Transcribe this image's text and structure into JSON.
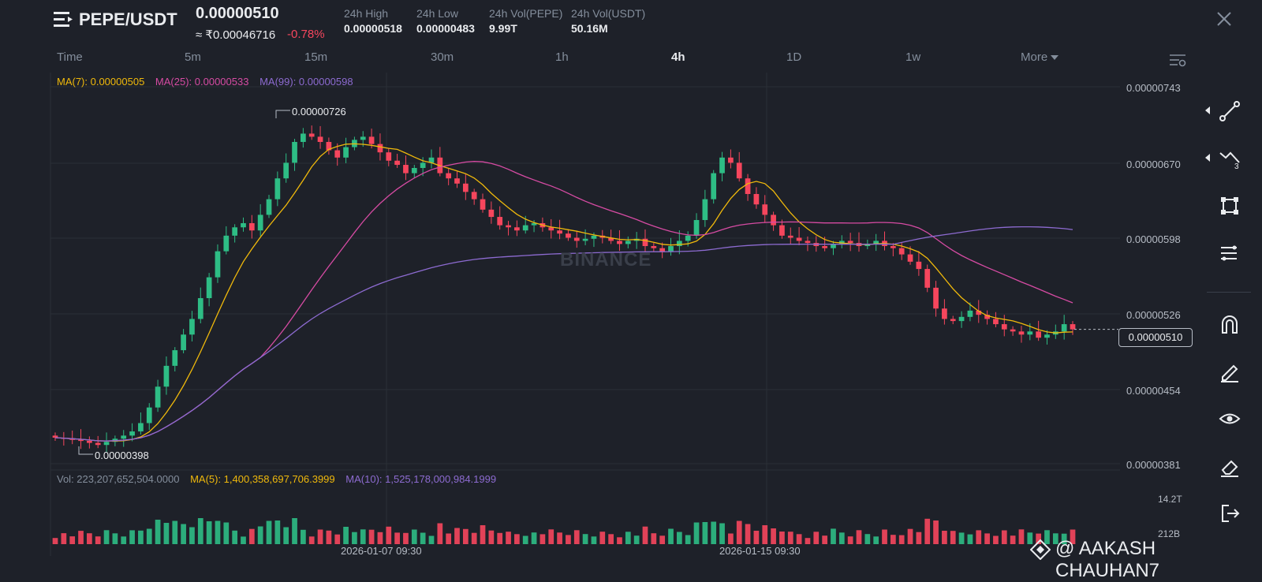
{
  "header": {
    "pair": "PEPE/USDT",
    "price": "0.00000510",
    "inr_price": "≈ ₹0.00046716",
    "change": "-0.78%",
    "stats": [
      {
        "label": "24h High",
        "value": "0.00000518"
      },
      {
        "label": "24h Low",
        "value": "0.00000483"
      },
      {
        "label": "24h Vol(PEPE)",
        "value": "9.99T"
      },
      {
        "label": "24h Vol(USDT)",
        "value": "50.16M"
      }
    ]
  },
  "timeframes": [
    "Time",
    "5m",
    "15m",
    "30m",
    "1h",
    "4h",
    "1D",
    "1w",
    "More"
  ],
  "active_timeframe": "4h",
  "ma_legend": {
    "ma7": "MA(7): 0.00000505",
    "ma25": "MA(25): 0.00000533",
    "ma99": "MA(99): 0.00000598"
  },
  "vol_legend": {
    "vol": "Vol: 223,207,652,504.0000",
    "ma5": "MA(5): 1,400,358,697,706.3999",
    "ma10": "MA(10): 1,525,178,000,984.1999"
  },
  "price_axis": [
    "0.00000743",
    "0.00000670",
    "0.00000598",
    "0.00000526",
    "0.00000454",
    "0.00000381"
  ],
  "current_price_tag": "0.00000510",
  "high_annotation": "0.00000726",
  "low_annotation": "0.00000398",
  "volume_axis": [
    "14.2T",
    "212B"
  ],
  "date_axis": [
    "2026-01-07 09:30",
    "2026-01-15 09:30"
  ],
  "watermark": "@ AAKASH CHAUHAN7",
  "chart_watermark": "BINANCE",
  "colors": {
    "up": "#2ebd85",
    "down": "#f6465d",
    "ma7": "#f0b90b",
    "ma25": "#d64ba3",
    "ma99": "#8d6bd1",
    "background": "#1e2129"
  },
  "tools": [
    "trend-line-icon",
    "fibonacci-icon",
    "shape-icon",
    "multi-line-icon",
    "magnet-icon",
    "pencil-icon",
    "eye-icon",
    "eraser-icon",
    "exit-icon"
  ],
  "chart_data": {
    "type": "candlestick",
    "ylim": [
      3.81e-06,
      7.43e-06
    ],
    "ohlc_closes": [
      4.06,
      4.05,
      4.04,
      4.03,
      4.01,
      3.99,
      4.02,
      4.05,
      4.08,
      4.12,
      4.2,
      4.35,
      4.55,
      4.75,
      4.9,
      5.05,
      5.2,
      5.4,
      5.6,
      5.85,
      6.0,
      6.08,
      6.12,
      6.05,
      6.2,
      6.35,
      6.55,
      6.7,
      6.9,
      6.98,
      6.95,
      6.9,
      6.82,
      6.75,
      6.85,
      6.92,
      6.95,
      6.88,
      6.8,
      6.72,
      6.68,
      6.6,
      6.65,
      6.7,
      6.75,
      6.6,
      6.55,
      6.5,
      6.42,
      6.35,
      6.25,
      6.18,
      6.1,
      6.08,
      6.05,
      6.1,
      6.12,
      6.08,
      6.05,
      6.02,
      5.98,
      5.95,
      5.97,
      6.0,
      5.98,
      5.95,
      5.92,
      5.95,
      5.97,
      5.9,
      5.88,
      5.85,
      5.9,
      5.95,
      6.0,
      6.15,
      6.35,
      6.6,
      6.75,
      6.7,
      6.55,
      6.4,
      6.3,
      6.2,
      6.1,
      6.0,
      5.98,
      5.95,
      5.93,
      5.9,
      5.88,
      5.92,
      5.95,
      5.93,
      5.9,
      5.92,
      5.95,
      5.9,
      5.88,
      5.82,
      5.75,
      5.68,
      5.5,
      5.3,
      5.2,
      5.18,
      5.22,
      5.28,
      5.24,
      5.2,
      5.15,
      5.1,
      5.08,
      5.05,
      5.08,
      5.02,
      5.05,
      5.08,
      5.15,
      5.1
    ]
  }
}
